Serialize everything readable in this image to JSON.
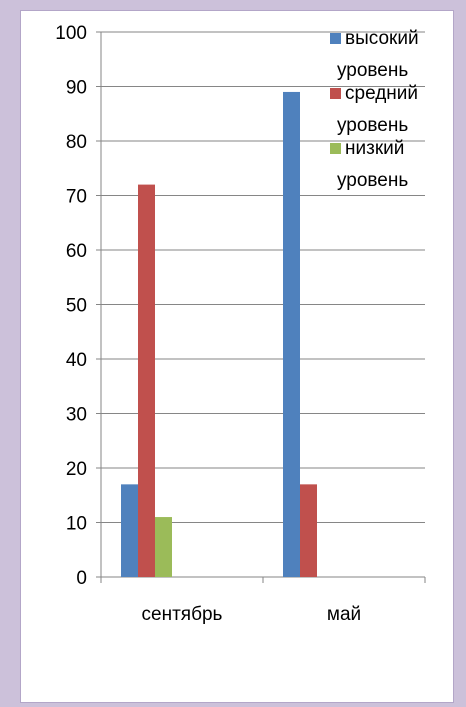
{
  "chart_data": {
    "type": "bar",
    "categories": [
      "сентябрь",
      "май"
    ],
    "series": [
      {
        "name": "высокий уровень",
        "values": [
          17,
          89
        ],
        "color": "#4f81bd"
      },
      {
        "name": "средний уровень",
        "values": [
          72,
          17
        ],
        "color": "#c0504d"
      },
      {
        "name": "низкий уровень",
        "values": [
          11,
          0
        ],
        "color": "#9bbb59"
      }
    ],
    "ylim": [
      0,
      100
    ],
    "yticks": [
      0,
      10,
      20,
      30,
      40,
      50,
      60,
      70,
      80,
      90,
      100
    ],
    "grid": true,
    "legend": "top-right",
    "title": "",
    "xlabel": "",
    "ylabel": ""
  }
}
